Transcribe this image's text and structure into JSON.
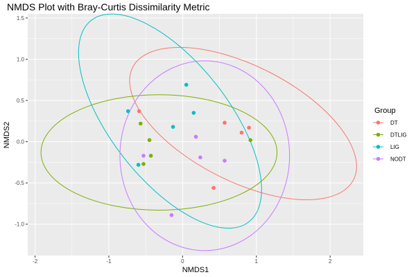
{
  "chart_data": {
    "type": "scatter",
    "title": "NMDS Plot with Bray-Curtis Dissimilarity Metric",
    "xlabel": "NMDS1",
    "ylabel": "NMDS2",
    "xlim": [
      -2.1,
      2.45
    ],
    "ylim": [
      -1.38,
      1.55
    ],
    "x_ticks": [
      -2,
      -1,
      0,
      1,
      2
    ],
    "y_ticks": [
      1.5,
      1.0,
      0.5,
      0.0,
      -0.5,
      -1.0
    ],
    "x_tick_labels": [
      "-2",
      "-1",
      "0",
      "1",
      "2"
    ],
    "y_tick_labels": [
      "1.5",
      "1.0",
      "0.5",
      "0.0",
      "-0.5",
      "-1.0"
    ],
    "grid": true,
    "legend_title": "Group",
    "legend_position": "right",
    "series": [
      {
        "name": "DT",
        "color": "#F8766D",
        "points": [
          [
            -0.59,
            0.37
          ],
          [
            0.57,
            0.23
          ],
          [
            0.8,
            0.11
          ],
          [
            0.9,
            0.17
          ],
          [
            0.42,
            -0.56
          ]
        ],
        "ellipse": {
          "cx": 0.82,
          "cy": 0.22,
          "rx": 1.68,
          "ry": 0.7,
          "angle_deg": -27
        }
      },
      {
        "name": "DTLIG",
        "color": "#7CAE00",
        "points": [
          [
            -0.57,
            0.22
          ],
          [
            -0.45,
            0.02
          ],
          [
            -0.43,
            -0.17
          ],
          [
            -0.53,
            -0.27
          ],
          [
            0.92,
            0.02
          ]
        ],
        "ellipse": {
          "cx": -0.32,
          "cy": -0.13,
          "rx": 1.6,
          "ry": 0.7,
          "angle_deg": 0
        }
      },
      {
        "name": "LIG",
        "color": "#00BFC4",
        "points": [
          [
            -0.74,
            0.37
          ],
          [
            0.05,
            0.69
          ],
          [
            0.15,
            0.35
          ],
          [
            -0.13,
            0.18
          ],
          [
            -0.6,
            -0.28
          ]
        ],
        "ellipse": {
          "cx": -0.17,
          "cy": 0.25,
          "rx": 0.8,
          "ry": 1.55,
          "angle_deg": 38
        }
      },
      {
        "name": "NODT",
        "color": "#C77CFF",
        "points": [
          [
            0.18,
            0.06
          ],
          [
            0.24,
            -0.19
          ],
          [
            0.57,
            -0.23
          ],
          [
            -0.53,
            -0.17
          ],
          [
            -0.15,
            -0.89
          ]
        ],
        "ellipse": {
          "cx": 0.3,
          "cy": -0.17,
          "rx": 1.15,
          "ry": 1.15,
          "angle_deg": 0
        }
      }
    ]
  }
}
